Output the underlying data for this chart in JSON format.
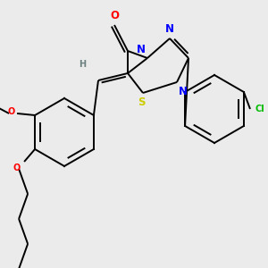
{
  "background_color": "#ebebeb",
  "bond_color": "#000000",
  "atom_colors": {
    "O": "#ff0000",
    "N": "#0000ff",
    "S": "#cccc00",
    "Cl": "#00bb00",
    "C": "#000000",
    "H": "#6c8080"
  },
  "figsize": [
    3.0,
    3.0
  ],
  "dpi": 100,
  "xlim": [
    0,
    300
  ],
  "ylim": [
    0,
    300
  ]
}
